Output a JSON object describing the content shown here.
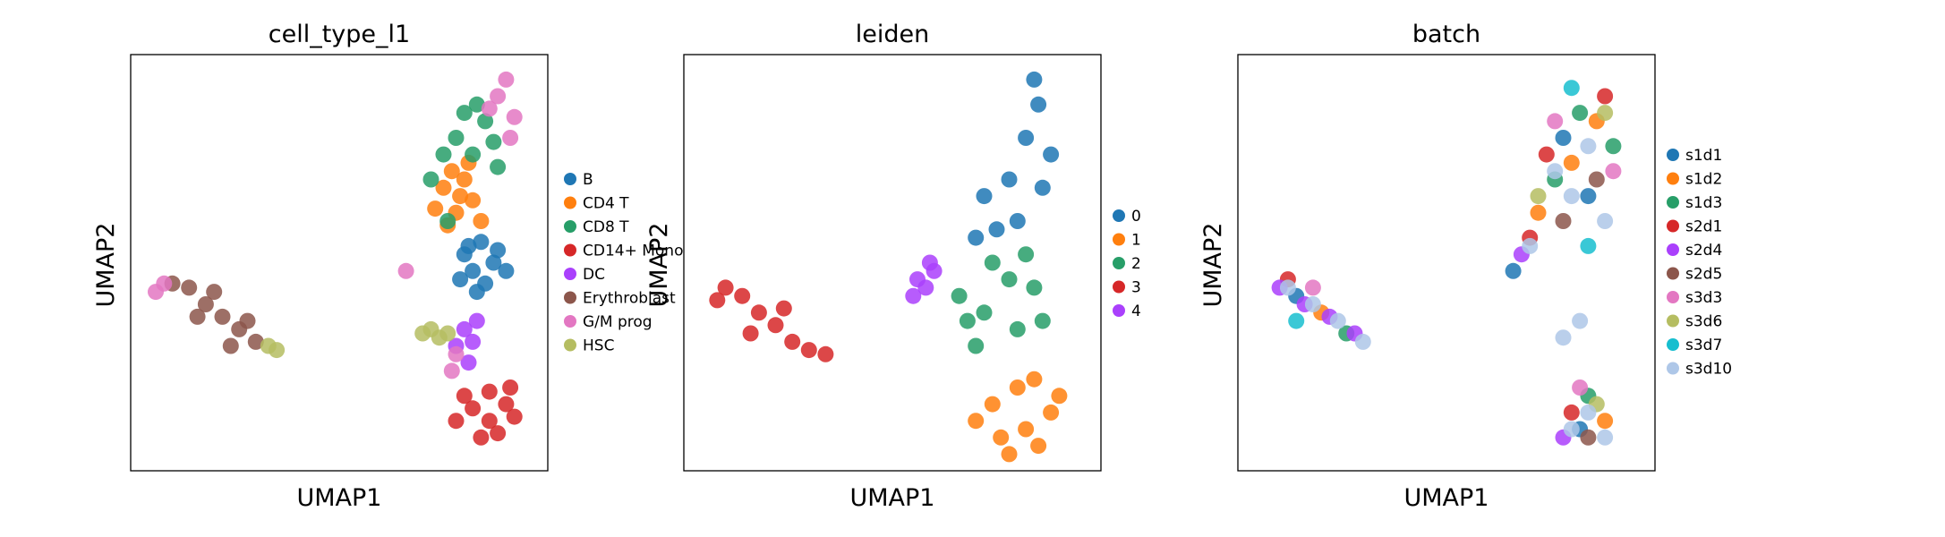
{
  "chart_data": [
    {
      "type": "scatter",
      "title": "cell_type_l1",
      "xlabel": "UMAP1",
      "ylabel": "UMAP2",
      "xlim": [
        0,
        100
      ],
      "ylim": [
        0,
        100
      ],
      "grid": false,
      "ticks": "none",
      "legend_placement": "right",
      "series": [
        {
          "name": "B",
          "color": "#1f77b4",
          "values": [
            [
              80,
              52
            ],
            [
              82,
              48
            ],
            [
              84,
              55
            ],
            [
              87,
              50
            ],
            [
              79,
              46
            ],
            [
              85,
              45
            ],
            [
              88,
              53
            ],
            [
              81,
              54
            ],
            [
              90,
              48
            ],
            [
              83,
              43
            ]
          ]
        },
        {
          "name": "CD4 T",
          "color": "#ff7f0e",
          "values": [
            [
              75,
              68
            ],
            [
              78,
              62
            ],
            [
              80,
              70
            ],
            [
              82,
              65
            ],
            [
              77,
              72
            ],
            [
              73,
              63
            ],
            [
              84,
              60
            ],
            [
              79,
              66
            ],
            [
              81,
              74
            ],
            [
              76,
              59
            ]
          ]
        },
        {
          "name": "CD8 T",
          "color": "#279e68",
          "values": [
            [
              78,
              80
            ],
            [
              82,
              76
            ],
            [
              85,
              84
            ],
            [
              80,
              86
            ],
            [
              87,
              79
            ],
            [
              75,
              76
            ],
            [
              83,
              88
            ],
            [
              88,
              73
            ],
            [
              72,
              70
            ],
            [
              76,
              60
            ]
          ]
        },
        {
          "name": "CD14+ Mono",
          "color": "#d62728",
          "values": [
            [
              82,
              15
            ],
            [
              86,
              12
            ],
            [
              90,
              16
            ],
            [
              78,
              12
            ],
            [
              84,
              8
            ],
            [
              88,
              9
            ],
            [
              92,
              13
            ],
            [
              80,
              18
            ],
            [
              86,
              19
            ],
            [
              91,
              20
            ]
          ]
        },
        {
          "name": "DC",
          "color": "#aa40fc",
          "values": [
            [
              80,
              34
            ],
            [
              82,
              31
            ],
            [
              83,
              36
            ],
            [
              78,
              30
            ],
            [
              81,
              26
            ]
          ]
        },
        {
          "name": "Erythroblast",
          "color": "#8c564b",
          "values": [
            [
              14,
              44
            ],
            [
              18,
              40
            ],
            [
              22,
              37
            ],
            [
              26,
              34
            ],
            [
              30,
              31
            ],
            [
              10,
              45
            ],
            [
              16,
              37
            ],
            [
              24,
              30
            ],
            [
              20,
              43
            ],
            [
              28,
              36
            ]
          ]
        },
        {
          "name": "G/M prog",
          "color": "#e377c2",
          "values": [
            [
              88,
              90
            ],
            [
              90,
              94
            ],
            [
              92,
              85
            ],
            [
              86,
              87
            ],
            [
              91,
              80
            ],
            [
              6,
              43
            ],
            [
              8,
              45
            ],
            [
              78,
              28
            ],
            [
              77,
              24
            ],
            [
              66,
              48
            ]
          ]
        },
        {
          "name": "HSC",
          "color": "#b5bd61",
          "values": [
            [
              33,
              30
            ],
            [
              35,
              29
            ],
            [
              72,
              34
            ],
            [
              76,
              33
            ],
            [
              70,
              33
            ],
            [
              74,
              32
            ]
          ]
        }
      ]
    },
    {
      "type": "scatter",
      "title": "leiden",
      "xlabel": "UMAP1",
      "ylabel": "UMAP2",
      "xlim": [
        0,
        100
      ],
      "ylim": [
        0,
        100
      ],
      "grid": false,
      "ticks": "none",
      "legend_placement": "right",
      "series": [
        {
          "name": "0",
          "color": "#1f77b4",
          "values": [
            [
              72,
              66
            ],
            [
              78,
              70
            ],
            [
              82,
              80
            ],
            [
              85,
              88
            ],
            [
              80,
              60
            ],
            [
              75,
              58
            ],
            [
              88,
              76
            ],
            [
              84,
              94
            ],
            [
              70,
              56
            ],
            [
              86,
              68
            ]
          ]
        },
        {
          "name": "1",
          "color": "#ff7f0e",
          "values": [
            [
              70,
              12
            ],
            [
              76,
              8
            ],
            [
              82,
              10
            ],
            [
              88,
              14
            ],
            [
              74,
              16
            ],
            [
              80,
              20
            ],
            [
              85,
              6
            ],
            [
              90,
              18
            ],
            [
              78,
              4
            ],
            [
              84,
              22
            ]
          ]
        },
        {
          "name": "2",
          "color": "#279e68",
          "values": [
            [
              66,
              42
            ],
            [
              72,
              38
            ],
            [
              78,
              46
            ],
            [
              84,
              44
            ],
            [
              70,
              30
            ],
            [
              80,
              34
            ],
            [
              86,
              36
            ],
            [
              74,
              50
            ],
            [
              82,
              52
            ],
            [
              68,
              36
            ]
          ]
        },
        {
          "name": "3",
          "color": "#d62728",
          "values": [
            [
              10,
              44
            ],
            [
              14,
              42
            ],
            [
              18,
              38
            ],
            [
              22,
              35
            ],
            [
              26,
              31
            ],
            [
              30,
              29
            ],
            [
              8,
              41
            ],
            [
              16,
              33
            ],
            [
              24,
              39
            ],
            [
              34,
              28
            ]
          ]
        },
        {
          "name": "4",
          "color": "#aa40fc",
          "values": [
            [
              56,
              46
            ],
            [
              58,
              44
            ],
            [
              60,
              48
            ],
            [
              55,
              42
            ],
            [
              59,
              50
            ]
          ]
        }
      ]
    },
    {
      "type": "scatter",
      "title": "batch",
      "xlabel": "UMAP1",
      "ylabel": "UMAP2",
      "xlim": [
        0,
        100
      ],
      "ylim": [
        0,
        100
      ],
      "grid": false,
      "ticks": "none",
      "legend_placement": "right",
      "series": [
        {
          "name": "s1d1",
          "color": "#1f77b4",
          "values": [
            [
              78,
              80
            ],
            [
              84,
              66
            ],
            [
              66,
              48
            ],
            [
              82,
              10
            ],
            [
              14,
              42
            ]
          ]
        },
        {
          "name": "s1d2",
          "color": "#ff7f0e",
          "values": [
            [
              80,
              74
            ],
            [
              86,
              84
            ],
            [
              72,
              62
            ],
            [
              88,
              12
            ],
            [
              20,
              38
            ]
          ]
        },
        {
          "name": "s1d3",
          "color": "#279e68",
          "values": [
            [
              82,
              86
            ],
            [
              76,
              70
            ],
            [
              90,
              78
            ],
            [
              84,
              18
            ],
            [
              26,
              33
            ]
          ]
        },
        {
          "name": "s2d1",
          "color": "#d62728",
          "values": [
            [
              74,
              76
            ],
            [
              88,
              90
            ],
            [
              70,
              56
            ],
            [
              80,
              14
            ],
            [
              12,
              46
            ]
          ]
        },
        {
          "name": "s2d4",
          "color": "#aa40fc",
          "values": [
            [
              10,
              44
            ],
            [
              16,
              40
            ],
            [
              22,
              37
            ],
            [
              28,
              33
            ],
            [
              68,
              52
            ],
            [
              78,
              8
            ]
          ]
        },
        {
          "name": "s2d5",
          "color": "#8c564b",
          "values": [
            [
              86,
              70
            ],
            [
              78,
              60
            ],
            [
              84,
              8
            ]
          ]
        },
        {
          "name": "s3d3",
          "color": "#e377c2",
          "values": [
            [
              76,
              84
            ],
            [
              90,
              72
            ],
            [
              18,
              44
            ],
            [
              82,
              20
            ]
          ]
        },
        {
          "name": "s3d6",
          "color": "#b5bd61",
          "values": [
            [
              88,
              86
            ],
            [
              72,
              66
            ],
            [
              86,
              16
            ]
          ]
        },
        {
          "name": "s3d7",
          "color": "#17becf",
          "values": [
            [
              80,
              92
            ],
            [
              84,
              54
            ],
            [
              14,
              36
            ]
          ]
        },
        {
          "name": "s3d10",
          "color": "#aec7e8",
          "values": [
            [
              80,
              66
            ],
            [
              84,
              78
            ],
            [
              76,
              72
            ],
            [
              88,
              60
            ],
            [
              70,
              54
            ],
            [
              82,
              36
            ],
            [
              78,
              32
            ],
            [
              84,
              14
            ],
            [
              80,
              10
            ],
            [
              88,
              8
            ],
            [
              12,
              44
            ],
            [
              18,
              40
            ],
            [
              24,
              36
            ],
            [
              30,
              31
            ]
          ]
        }
      ]
    }
  ]
}
